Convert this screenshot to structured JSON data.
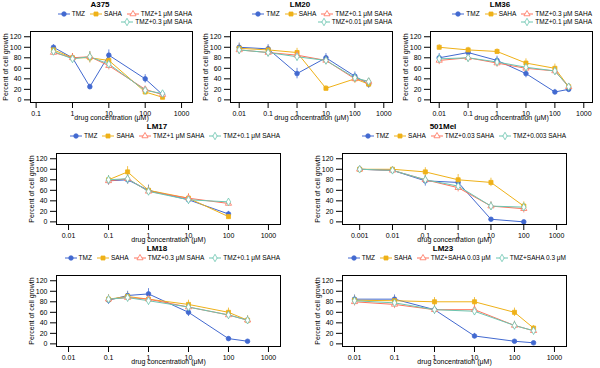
{
  "chart_data": [
    {
      "type": "line",
      "title": "A375",
      "xlabel": "drug concentration (μM)",
      "ylabel": "Percent of cell growth",
      "log": "x",
      "legend": "upper right",
      "xlim": [
        0.07,
        2000
      ],
      "xticks": [
        0.1,
        1,
        10,
        100,
        1000
      ],
      "ylim": [
        -5,
        130
      ],
      "yticks": [
        0,
        20,
        40,
        60,
        80,
        100,
        120
      ],
      "series": [
        {
          "name": "TMZ",
          "marker": "circle",
          "x": [
            0.3,
            1,
            3,
            10,
            100,
            300
          ],
          "values": [
            100,
            80,
            25,
            85,
            40,
            10
          ],
          "yerr": [
            5,
            8,
            5,
            10,
            8,
            5
          ]
        },
        {
          "name": "SAHA",
          "marker": "square",
          "x": [
            0.3,
            1,
            3,
            10,
            100,
            300
          ],
          "values": [
            95,
            80,
            80,
            75,
            15,
            5
          ],
          "yerr": [
            5,
            8,
            10,
            10,
            5,
            3
          ]
        },
        {
          "name": "TMZ+1 μM SAHA",
          "marker": "triangle-open",
          "x": [
            0.3,
            1,
            3,
            10,
            100,
            300
          ],
          "values": [
            90,
            80,
            82,
            65,
            20,
            10
          ],
          "yerr": [
            5,
            8,
            10,
            8,
            5,
            3
          ]
        },
        {
          "name": "TMZ+0.3 μM SAHA",
          "marker": "diamond-open",
          "x": [
            0.3,
            1,
            3,
            10,
            100,
            300
          ],
          "values": [
            92,
            78,
            82,
            68,
            18,
            12
          ],
          "yerr": [
            5,
            8,
            10,
            8,
            5,
            3
          ]
        }
      ]
    },
    {
      "type": "line",
      "title": "LM20",
      "xlabel": "drug concentration (μM)",
      "ylabel": "Percent of cell growth",
      "log": "x",
      "legend": "upper right",
      "xlim": [
        0.005,
        2000
      ],
      "xticks": [
        0.01,
        0.1,
        1,
        10,
        100,
        1000
      ],
      "ylim": [
        -5,
        130
      ],
      "yticks": [
        0,
        20,
        40,
        60,
        80,
        100,
        120
      ],
      "series": [
        {
          "name": "TMZ",
          "marker": "circle",
          "x": [
            0.01,
            0.1,
            1,
            10,
            100,
            300
          ],
          "values": [
            100,
            97,
            50,
            80,
            45,
            30
          ],
          "yerr": [
            8,
            8,
            10,
            8,
            8,
            8
          ]
        },
        {
          "name": "SAHA",
          "marker": "square",
          "x": [
            0.01,
            0.1,
            1,
            10,
            100,
            300
          ],
          "values": [
            98,
            95,
            90,
            22,
            40,
            30
          ],
          "yerr": [
            8,
            8,
            8,
            5,
            8,
            5
          ]
        },
        {
          "name": "TMZ+0.1 μM SAHA",
          "marker": "triangle-open",
          "x": [
            0.01,
            0.1,
            1,
            10,
            100,
            300
          ],
          "values": [
            95,
            90,
            85,
            75,
            40,
            35
          ],
          "yerr": [
            8,
            8,
            8,
            8,
            8,
            5
          ]
        },
        {
          "name": "TMZ+0.01 μM SAHA",
          "marker": "diamond-open",
          "x": [
            0.01,
            0.1,
            1,
            10,
            100,
            300
          ],
          "values": [
            95,
            90,
            82,
            75,
            42,
            35
          ],
          "yerr": [
            8,
            8,
            8,
            8,
            8,
            5
          ]
        }
      ]
    },
    {
      "type": "line",
      "title": "LM36",
      "xlabel": "drug concentration (μM)",
      "ylabel": "Percent of cell growth",
      "log": "x",
      "legend": "upper right",
      "xlim": [
        0.005,
        2000
      ],
      "xticks": [
        0.01,
        0.1,
        1,
        10,
        100,
        1000
      ],
      "ylim": [
        -5,
        130
      ],
      "yticks": [
        0,
        20,
        40,
        60,
        80,
        100,
        120
      ],
      "series": [
        {
          "name": "TMZ",
          "marker": "circle",
          "x": [
            0.01,
            0.1,
            1,
            10,
            100,
            300
          ],
          "values": [
            80,
            90,
            75,
            50,
            15,
            20
          ],
          "yerr": [
            8,
            8,
            8,
            8,
            5,
            5
          ]
        },
        {
          "name": "SAHA",
          "marker": "square",
          "x": [
            0.01,
            0.1,
            1,
            10,
            100,
            300
          ],
          "values": [
            100,
            95,
            92,
            70,
            60,
            25
          ],
          "yerr": [
            5,
            5,
            5,
            8,
            8,
            5
          ]
        },
        {
          "name": "TMZ+0.3 μM SAHA",
          "marker": "triangle-open",
          "x": [
            0.01,
            0.1,
            1,
            10,
            100,
            300
          ],
          "values": [
            75,
            80,
            70,
            60,
            55,
            25
          ],
          "yerr": [
            8,
            8,
            8,
            8,
            8,
            5
          ]
        },
        {
          "name": "TMZ+0.1 μM SAHA",
          "marker": "diamond-open",
          "x": [
            0.01,
            0.1,
            1,
            10,
            100,
            300
          ],
          "values": [
            78,
            80,
            72,
            62,
            55,
            25
          ],
          "yerr": [
            8,
            8,
            8,
            8,
            8,
            5
          ]
        }
      ]
    },
    {
      "type": "line",
      "title": "LM17",
      "xlabel": "drug concentration (μM)",
      "ylabel": "Percent of cell growth",
      "log": "x",
      "legend": "upper right",
      "xlim": [
        0.005,
        2000
      ],
      "xticks": [
        0.01,
        0.1,
        1,
        10,
        100,
        1000
      ],
      "ylim": [
        -5,
        130
      ],
      "yticks": [
        0,
        20,
        40,
        60,
        80,
        100,
        120
      ],
      "series": [
        {
          "name": "TMZ",
          "marker": "circle",
          "x": [
            0.1,
            0.3,
            1,
            10,
            100
          ],
          "values": [
            78,
            80,
            60,
            42,
            15
          ],
          "yerr": [
            8,
            8,
            10,
            8,
            5
          ]
        },
        {
          "name": "SAHA",
          "marker": "square",
          "x": [
            0.1,
            0.3,
            1,
            10,
            100
          ],
          "values": [
            80,
            95,
            60,
            45,
            10
          ],
          "yerr": [
            8,
            10,
            8,
            8,
            5
          ]
        },
        {
          "name": "TMZ+1 μM SAHA",
          "marker": "triangle-open",
          "x": [
            0.1,
            0.3,
            1,
            10,
            100
          ],
          "values": [
            78,
            82,
            58,
            45,
            35
          ],
          "yerr": [
            8,
            10,
            8,
            8,
            5
          ]
        },
        {
          "name": "TMZ+0.1 μM SAHA",
          "marker": "diamond-open",
          "x": [
            0.1,
            0.3,
            1,
            10,
            100
          ],
          "values": [
            80,
            82,
            58,
            42,
            38
          ],
          "yerr": [
            8,
            10,
            8,
            8,
            5
          ]
        }
      ]
    },
    {
      "type": "line",
      "title": "501Mel",
      "xlabel": "drug concentration (μM)",
      "ylabel": "Percent of cell growth",
      "log": "x",
      "legend": "upper right",
      "xlim": [
        0.0003,
        2000
      ],
      "xticks": [
        0.001,
        0.01,
        0.1,
        1,
        10,
        100,
        1000
      ],
      "ylim": [
        -5,
        130
      ],
      "yticks": [
        0,
        20,
        40,
        60,
        80,
        100,
        120
      ],
      "series": [
        {
          "name": "TMZ",
          "marker": "circle",
          "x": [
            0.001,
            0.01,
            0.1,
            1,
            10,
            100
          ],
          "values": [
            100,
            98,
            78,
            75,
            5,
            0
          ],
          "yerr": [
            5,
            5,
            10,
            8,
            3,
            2
          ]
        },
        {
          "name": "SAHA",
          "marker": "square",
          "x": [
            0.001,
            0.01,
            0.1,
            1,
            10,
            100
          ],
          "values": [
            100,
            100,
            95,
            80,
            75,
            30
          ],
          "yerr": [
            5,
            5,
            8,
            10,
            8,
            8
          ]
        },
        {
          "name": "TMZ+0.03 SAHA",
          "marker": "triangle-open",
          "x": [
            0.001,
            0.01,
            0.1,
            1,
            10,
            100
          ],
          "values": [
            100,
            98,
            80,
            65,
            30,
            25
          ],
          "yerr": [
            5,
            5,
            8,
            8,
            8,
            8
          ]
        },
        {
          "name": "TMZ+0.003 SAHA",
          "marker": "diamond-open",
          "x": [
            0.001,
            0.01,
            0.1,
            1,
            10,
            100
          ],
          "values": [
            100,
            98,
            80,
            68,
            30,
            28
          ],
          "yerr": [
            5,
            5,
            8,
            8,
            8,
            8
          ]
        }
      ]
    },
    {
      "type": "line",
      "title": "LM18",
      "xlabel": "drug concentration (μM)",
      "ylabel": "Percent of cell growth",
      "log": "x",
      "legend": "upper right",
      "xlim": [
        0.005,
        2000
      ],
      "xticks": [
        0.01,
        0.1,
        1,
        10,
        100,
        1000
      ],
      "ylim": [
        -5,
        130
      ],
      "yticks": [
        0,
        20,
        40,
        60,
        80,
        100,
        120
      ],
      "series": [
        {
          "name": "TMZ",
          "marker": "circle",
          "x": [
            0.1,
            0.3,
            1,
            10,
            100,
            300
          ],
          "values": [
            83,
            92,
            95,
            60,
            10,
            5
          ],
          "yerr": [
            8,
            8,
            10,
            8,
            3,
            2
          ]
        },
        {
          "name": "SAHA",
          "marker": "square",
          "x": [
            0.1,
            0.3,
            1,
            10,
            100,
            300
          ],
          "values": [
            85,
            90,
            85,
            75,
            60,
            45
          ],
          "yerr": [
            8,
            8,
            8,
            8,
            8,
            8
          ]
        },
        {
          "name": "TMZ+0.3 μM SAHA",
          "marker": "triangle-open",
          "x": [
            0.1,
            0.3,
            1,
            10,
            100,
            300
          ],
          "values": [
            85,
            88,
            85,
            70,
            55,
            45
          ],
          "yerr": [
            8,
            8,
            8,
            8,
            8,
            8
          ]
        },
        {
          "name": "TMZ+0.1 μM SAHA",
          "marker": "diamond-open",
          "x": [
            0.1,
            0.3,
            1,
            10,
            100,
            300
          ],
          "values": [
            85,
            88,
            82,
            70,
            55,
            45
          ],
          "yerr": [
            8,
            8,
            8,
            8,
            8,
            8
          ]
        }
      ]
    },
    {
      "type": "line",
      "title": "LM23",
      "xlabel": "drug concentration (μM)",
      "ylabel": "Percent of cell growth",
      "log": "x",
      "legend": "upper right",
      "xlim": [
        0.005,
        2000
      ],
      "xticks": [
        0.01,
        0.1,
        1,
        10,
        100,
        1000
      ],
      "ylim": [
        -5,
        130
      ],
      "yticks": [
        0,
        20,
        40,
        60,
        80,
        100,
        120
      ],
      "series": [
        {
          "name": "TMZ",
          "marker": "circle",
          "x": [
            0.01,
            0.1,
            1,
            10,
            100,
            300
          ],
          "values": [
            85,
            85,
            65,
            15,
            5,
            2
          ],
          "yerr": [
            8,
            8,
            8,
            5,
            2,
            1
          ]
        },
        {
          "name": "SAHA",
          "marker": "square",
          "x": [
            0.01,
            0.1,
            1,
            10,
            100,
            300
          ],
          "values": [
            83,
            82,
            80,
            80,
            60,
            30
          ],
          "yerr": [
            8,
            8,
            8,
            8,
            8,
            5
          ]
        },
        {
          "name": "TMZ+SAHA 0.03 μM",
          "marker": "triangle-open",
          "x": [
            0.01,
            0.1,
            1,
            10,
            100,
            300
          ],
          "values": [
            80,
            75,
            65,
            65,
            35,
            25
          ],
          "yerr": [
            8,
            8,
            8,
            8,
            8,
            5
          ]
        },
        {
          "name": "TMZ+SAHA 0.3 μM",
          "marker": "diamond-open",
          "x": [
            0.01,
            0.1,
            1,
            10,
            100,
            300
          ],
          "values": [
            82,
            78,
            65,
            62,
            35,
            25
          ],
          "yerr": [
            8,
            8,
            8,
            8,
            8,
            5
          ]
        }
      ]
    }
  ]
}
